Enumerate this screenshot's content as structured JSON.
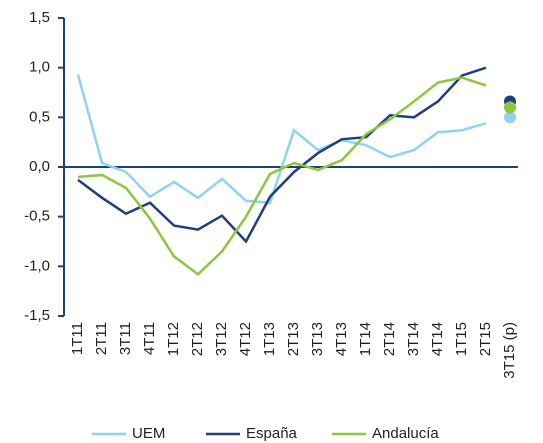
{
  "chart_data": {
    "type": "line",
    "categories": [
      "1T11",
      "2T11",
      "3T11",
      "4T11",
      "1T12",
      "2T12",
      "3T12",
      "4T12",
      "1T13",
      "2T13",
      "3T13",
      "4T13",
      "1T14",
      "2T14",
      "3T14",
      "4T14",
      "1T15",
      "2T15",
      "3T15 (p)"
    ],
    "series": [
      {
        "name": "UEM",
        "color": "#8fd3f0",
        "values": [
          0.93,
          0.04,
          -0.05,
          -0.3,
          -0.15,
          -0.31,
          -0.12,
          -0.34,
          -0.36,
          0.37,
          0.17,
          0.27,
          0.22,
          0.1,
          0.17,
          0.35,
          0.37,
          0.44,
          0.5
        ]
      },
      {
        "name": "España",
        "color": "#1f3f7f",
        "values": [
          -0.13,
          -0.31,
          -0.47,
          -0.36,
          -0.59,
          -0.63,
          -0.49,
          -0.75,
          -0.3,
          -0.05,
          0.14,
          0.28,
          0.3,
          0.52,
          0.5,
          0.66,
          0.92,
          1.0,
          0.66
        ]
      },
      {
        "name": "Andalucía",
        "color": "#8dc63f",
        "values": [
          -0.1,
          -0.08,
          -0.21,
          -0.52,
          -0.9,
          -1.08,
          -0.85,
          -0.5,
          -0.07,
          0.04,
          -0.03,
          0.07,
          0.33,
          0.48,
          0.66,
          0.85,
          0.9,
          0.82,
          0.6
        ]
      }
    ],
    "ylim": [
      -1.5,
      1.5
    ],
    "yticks": [
      {
        "value": -1.5,
        "label": "-1,5"
      },
      {
        "value": -1,
        "label": "-1,0"
      },
      {
        "value": -0.5,
        "label": "-0,5"
      },
      {
        "value": 0,
        "label": "0,0"
      },
      {
        "value": 0.5,
        "label": "0,5"
      },
      {
        "value": 1,
        "label": "1,0"
      },
      {
        "value": 1.5,
        "label": "1,5"
      }
    ],
    "axis_color": "#1f3f7f"
  }
}
